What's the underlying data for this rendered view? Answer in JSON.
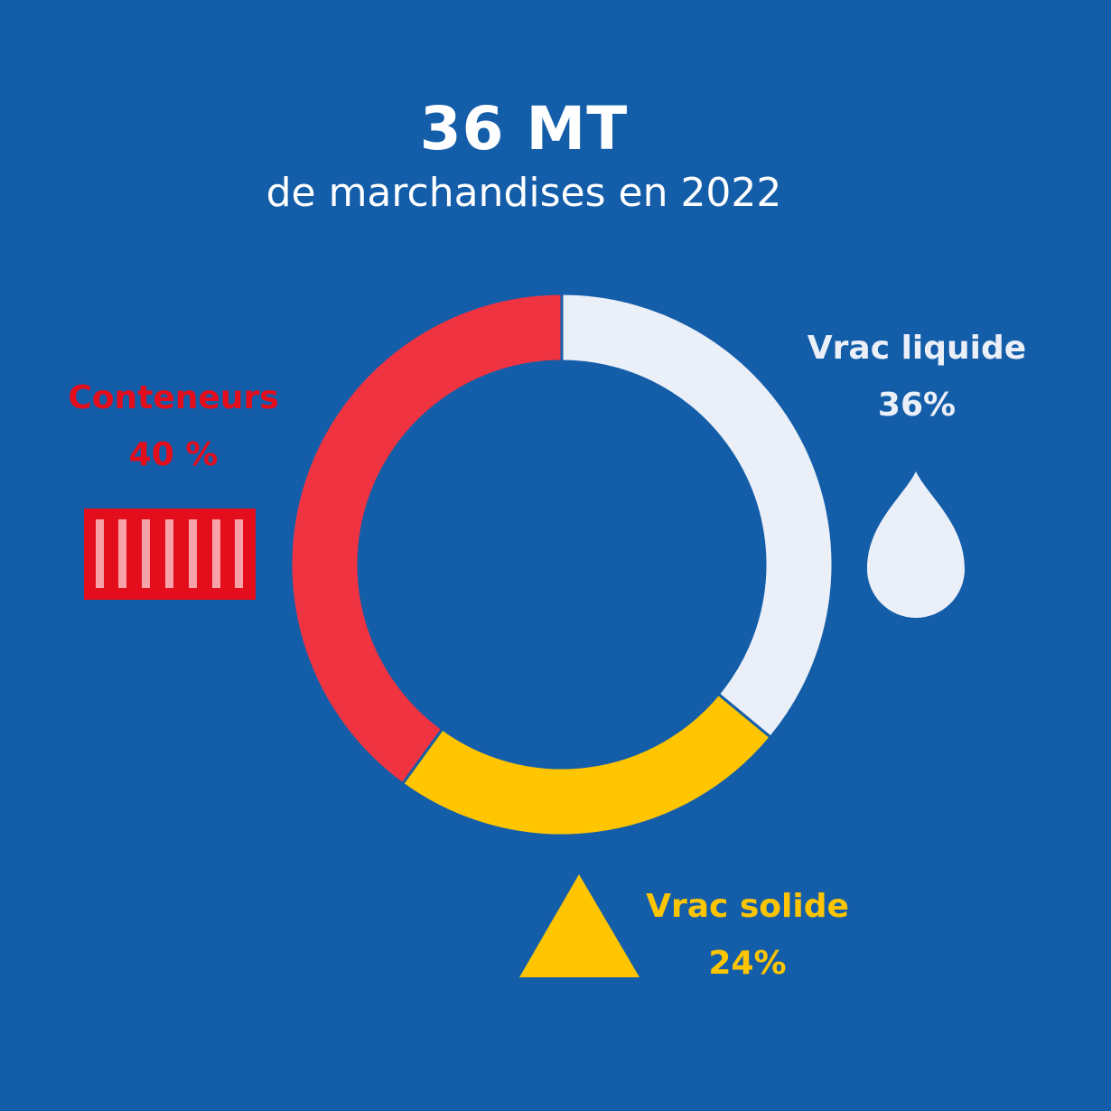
{
  "headline": {
    "value": "36 MT",
    "subtitle": "de marchandises en 2022"
  },
  "colors": {
    "background": "#145ea9",
    "conteneurs": "#ef3340",
    "conteneurs_label": "#e30d1c",
    "liquide": "#ebeff8",
    "solide": "#fec500"
  },
  "chart_data": {
    "type": "pie",
    "variant": "donut",
    "order": "clockwise from top",
    "slices": [
      {
        "label": "Vrac liquide",
        "value": 36,
        "value_label": "36%",
        "color": "#ebeff8",
        "icon": "droplet-icon"
      },
      {
        "label": "Vrac solide",
        "value": 24,
        "value_label": "24%",
        "color": "#fec500",
        "icon": "triangle-icon"
      },
      {
        "label": "Conteneurs",
        "value": 40,
        "value_label": "40 %",
        "color": "#ef3340",
        "icon": "container-icon"
      }
    ]
  }
}
